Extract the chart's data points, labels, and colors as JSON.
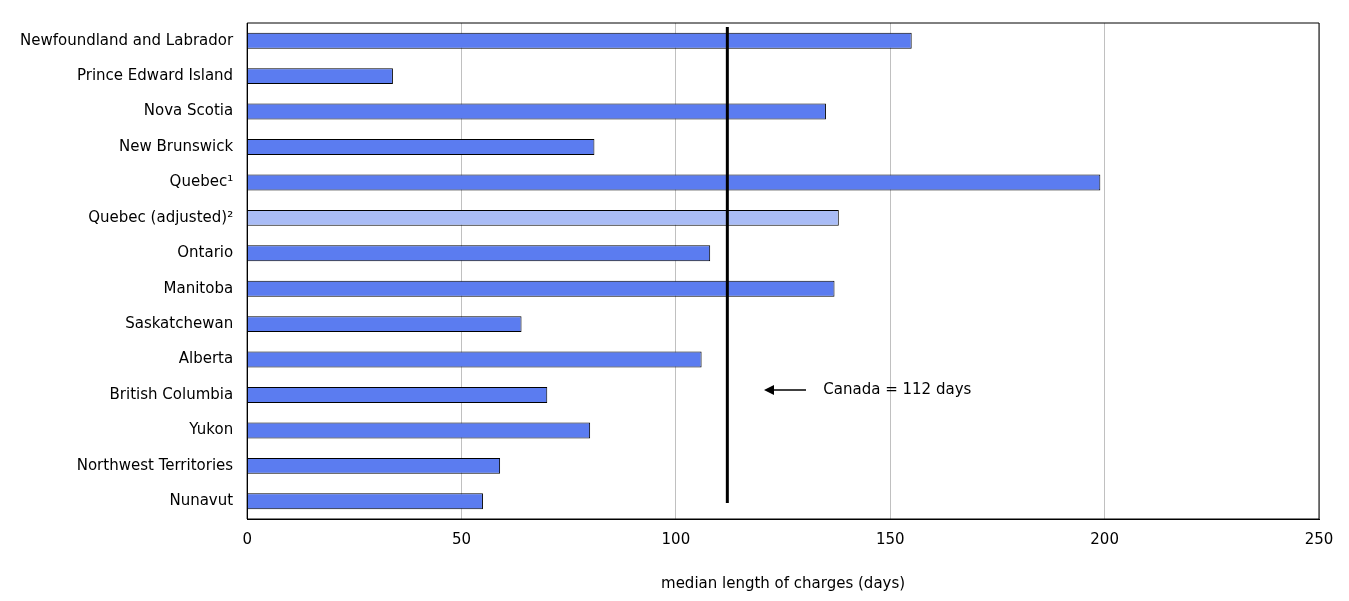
{
  "chart_data": {
    "type": "bar",
    "orientation": "horizontal",
    "xlabel": "median length of charges (days)",
    "categories": [
      "Newfoundland and Labrador",
      "Prince Edward Island",
      "Nova Scotia",
      "New Brunswick",
      "Quebec¹",
      "Quebec (adjusted)²",
      "Ontario",
      "Manitoba",
      "Saskatchewan",
      "Alberta",
      "British Columbia",
      "Yukon",
      "Northwest Territories",
      "Nunavut"
    ],
    "values": [
      155,
      34,
      135,
      81,
      199,
      138,
      108,
      137,
      64,
      106,
      70,
      80,
      59,
      55
    ],
    "colors": [
      "#5b7cf0",
      "#5b7cf0",
      "#5b7cf0",
      "#5b7cf0",
      "#5b7cf0",
      "#a9bcf6",
      "#5b7cf0",
      "#5b7cf0",
      "#5b7cf0",
      "#5b7cf0",
      "#5b7cf0",
      "#5b7cf0",
      "#5b7cf0",
      "#5b7cf0"
    ],
    "xlim": [
      0,
      250
    ],
    "xticks": [
      0,
      50,
      100,
      150,
      200,
      250
    ],
    "grid": "x",
    "legend": false,
    "ref_lines": [
      {
        "axis": "x",
        "value": 112,
        "label": "Canada = 112 days",
        "color": "#000000"
      }
    ]
  }
}
